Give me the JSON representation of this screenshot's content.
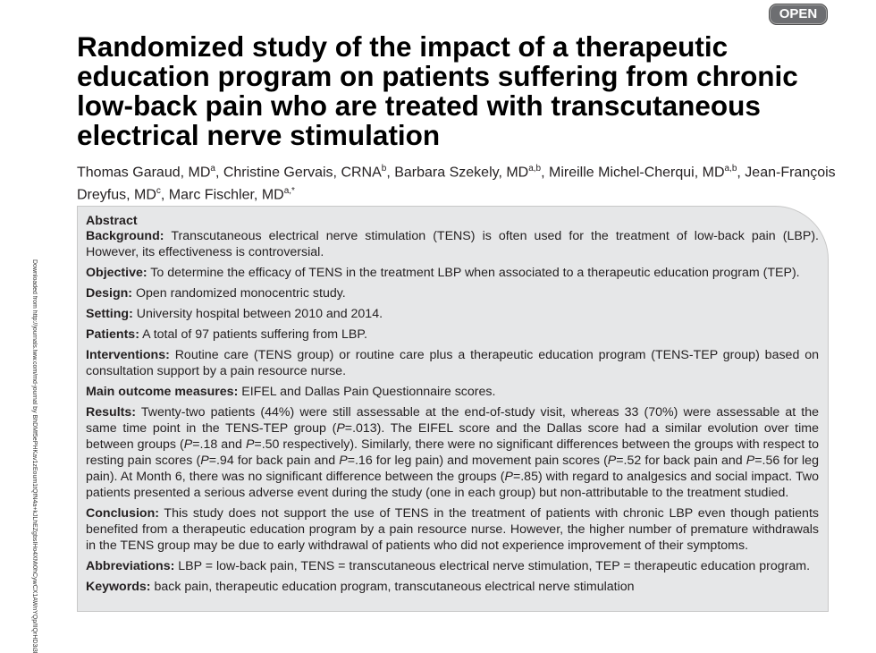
{
  "badge": "OPEN",
  "side_note": "Downloaded from http://journals.lww.com/md-journal by BhDMf5ePHKav1zEoum1tQfN4a+kJLhEZgbsIHo4XMi0hCywCX1AWnYQp/IlQrHD3i3D0OdRyi7TvSFl4Cf3VC1y0abggQZXdtwnfKZBYtws=",
  "title": "Randomized study of the impact of a therapeutic education program on patients suffering from chronic low-back pain who are treated with transcutaneous electrical nerve stimulation",
  "authors": [
    {
      "text": "Thomas Garaud, MD",
      "sup": "a"
    },
    {
      "text": ", Christine Gervais, CRNA",
      "sup": "b"
    },
    {
      "text": ", Barbara Szekely, MD",
      "sup": "a,b"
    },
    {
      "text": ", Mireille Michel-Cherqui, MD",
      "sup": "a,b"
    },
    {
      "text": ", Jean-François Dreyfus, MD",
      "sup": "c"
    },
    {
      "text": ", Marc Fischler, MD",
      "sup": "a,*"
    }
  ],
  "abstract": {
    "heading": "Abstract",
    "items": [
      {
        "label": "Background:",
        "text": [
          "Transcutaneous electrical nerve stimulation (TENS) is often used for the treatment of low-back pain (LBP). However, its effectiveness is controversial."
        ]
      },
      {
        "label": "Objective:",
        "text": [
          "To determine the efficacy of TENS in the treatment LBP when associated to a therapeutic education program (TEP)."
        ]
      },
      {
        "label": "Design:",
        "text": [
          "Open randomized monocentric study."
        ]
      },
      {
        "label": "Setting:",
        "text": [
          "University hospital between 2010 and 2014."
        ]
      },
      {
        "label": "Patients:",
        "text": [
          "A total of 97 patients suffering from LBP."
        ]
      },
      {
        "label": "Interventions:",
        "text": [
          "Routine care (TENS group) or routine care plus a therapeutic education program (TENS-TEP group) based on consultation support by a pain resource nurse."
        ]
      },
      {
        "label": "Main outcome measures:",
        "text": [
          "EIFEL and Dallas Pain Questionnaire scores."
        ]
      },
      {
        "label": "Results:",
        "text": [
          "Twenty-two patients (44%) were still assessable at the end-of-study visit, whereas 33 (70%) were assessable at the same time point in the TENS-TEP group (",
          {
            "text": "P",
            "italic": true
          },
          "=.013). The EIFEL score and the Dallas score had a similar evolution over time between groups (",
          {
            "text": "P",
            "italic": true
          },
          "=.18 and ",
          {
            "text": "P",
            "italic": true
          },
          "=.50 respectively). Similarly, there were no significant differences between the groups with respect to resting pain scores (",
          {
            "text": "P",
            "italic": true
          },
          "=.94 for back pain and ",
          {
            "text": "P",
            "italic": true
          },
          "=.16 for leg pain) and movement pain scores (",
          {
            "text": "P",
            "italic": true
          },
          "=.52 for back pain and ",
          {
            "text": "P",
            "italic": true
          },
          "=.56 for leg pain). At Month 6, there was no significant difference between the groups (",
          {
            "text": "P",
            "italic": true
          },
          "=.85) with regard to analgesics and social impact. Two patients presented a serious adverse event during the study (one in each group) but non-attributable to the treatment studied."
        ]
      },
      {
        "label": "Conclusion:",
        "text": [
          "This study does not support the use of TENS in the treatment of patients with chronic LBP even though patients benefited from a therapeutic education program by a pain resource nurse. However, the higher number of premature withdrawals in the TENS group may be due to early withdrawal of patients who did not experience improvement of their symptoms."
        ]
      },
      {
        "label": "Abbreviations:",
        "text": [
          "LBP = low-back pain, TENS = transcutaneous electrical nerve stimulation, TEP = therapeutic education program."
        ]
      },
      {
        "label": "Keywords:",
        "text": [
          "back pain, therapeutic education program, transcutaneous electrical nerve stimulation"
        ]
      }
    ]
  }
}
